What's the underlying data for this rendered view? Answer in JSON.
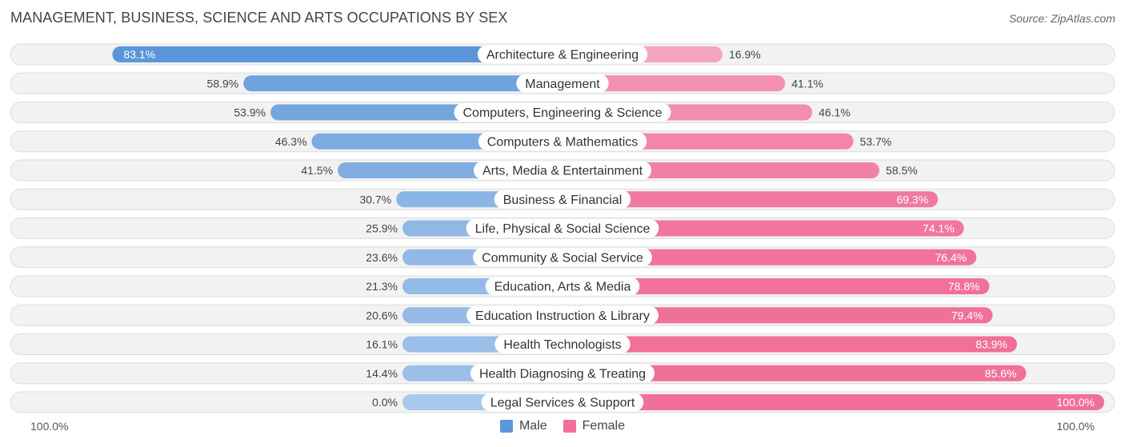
{
  "title": "MANAGEMENT, BUSINESS, SCIENCE AND ARTS OCCUPATIONS BY SEX",
  "source": "Source: ZipAtlas.com",
  "axis": {
    "left_label": "100.0%",
    "right_label": "100.0%"
  },
  "legend": {
    "male_label": "Male",
    "female_label": "Female"
  },
  "colors": {
    "male_dark": "#5b96d8",
    "male_light": "#a9c8eb",
    "female_dark": "#f07098",
    "female_light": "#f7b3c9",
    "row_bg": "#f2f2f2",
    "row_border": "#dcdcdc"
  },
  "chart_data": {
    "type": "bar",
    "orientation": "horizontal-diverging",
    "title": "MANAGEMENT, BUSINESS, SCIENCE AND ARTS OCCUPATIONS BY SEX",
    "categories": [
      "Architecture & Engineering",
      "Management",
      "Computers, Engineering & Science",
      "Computers & Mathematics",
      "Arts, Media & Entertainment",
      "Business & Financial",
      "Life, Physical & Social Science",
      "Community & Social Service",
      "Education, Arts & Media",
      "Education Instruction & Library",
      "Health Technologists",
      "Health Diagnosing & Treating",
      "Legal Services & Support"
    ],
    "series": [
      {
        "name": "Male",
        "values": [
          83.1,
          58.9,
          53.9,
          46.3,
          41.5,
          30.7,
          25.9,
          23.6,
          21.3,
          20.6,
          16.1,
          14.4,
          0.0
        ],
        "labels": [
          "83.1%",
          "58.9%",
          "53.9%",
          "46.3%",
          "41.5%",
          "30.7%",
          "25.9%",
          "23.6%",
          "21.3%",
          "20.6%",
          "16.1%",
          "14.4%",
          "0.0%"
        ]
      },
      {
        "name": "Female",
        "values": [
          16.9,
          41.1,
          46.1,
          53.7,
          58.5,
          69.3,
          74.1,
          76.4,
          78.8,
          79.4,
          83.9,
          85.6,
          100.0
        ],
        "labels": [
          "16.9%",
          "41.1%",
          "46.1%",
          "53.7%",
          "58.5%",
          "69.3%",
          "74.1%",
          "76.4%",
          "78.8%",
          "79.4%",
          "83.9%",
          "85.6%",
          "100.0%"
        ]
      }
    ],
    "xlim": [
      -100,
      100
    ],
    "legend_position": "bottom-center"
  }
}
